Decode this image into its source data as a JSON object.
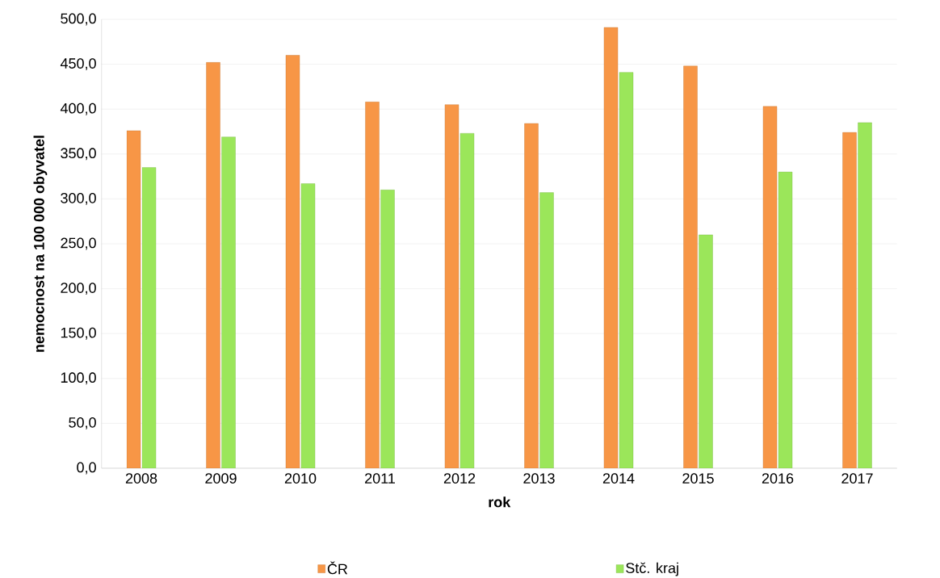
{
  "chart_data": {
    "type": "bar",
    "xlabel": "rok",
    "ylabel": "nemocnost na 100 000 obyvatel",
    "categories": [
      "2008",
      "2009",
      "2010",
      "2011",
      "2012",
      "2013",
      "2014",
      "2015",
      "2016",
      "2017"
    ],
    "series": [
      {
        "name": "ČR",
        "color": "#f79646",
        "values": [
          376,
          452,
          460,
          408,
          405,
          384,
          491,
          448,
          403,
          374
        ]
      },
      {
        "name": "Stč. kraj",
        "color": "#9be65a",
        "values": [
          335,
          369,
          317,
          310,
          373,
          307,
          441,
          260,
          330,
          385
        ]
      }
    ],
    "ylim": [
      0,
      500
    ],
    "yticks": [
      {
        "value": 0,
        "label": "0,0"
      },
      {
        "value": 50,
        "label": "50,0"
      },
      {
        "value": 100,
        "label": "100,0"
      },
      {
        "value": 150,
        "label": "150,0"
      },
      {
        "value": 200,
        "label": "200,0"
      },
      {
        "value": 250,
        "label": "250,0"
      },
      {
        "value": 300,
        "label": "300,0"
      },
      {
        "value": 350,
        "label": "350,0"
      },
      {
        "value": 400,
        "label": "400,0"
      },
      {
        "value": 450,
        "label": "450,0"
      },
      {
        "value": 500,
        "label": "500,0"
      }
    ],
    "grid": "y",
    "legend": "bottom"
  }
}
